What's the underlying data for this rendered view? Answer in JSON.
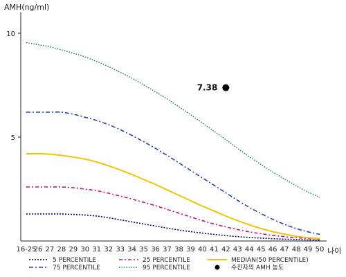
{
  "chart_data": {
    "type": "line",
    "title": "",
    "ylabel": "AMH(ng/ml)",
    "xlabel": "나이",
    "x": [
      "16-25",
      "26",
      "27",
      "28",
      "29",
      "30",
      "31",
      "32",
      "33",
      "34",
      "35",
      "36",
      "37",
      "38",
      "39",
      "40",
      "41",
      "42",
      "43",
      "44",
      "45",
      "46",
      "47",
      "48",
      "49",
      "50"
    ],
    "ylim": [
      0,
      11
    ],
    "yticks": [
      5,
      10
    ],
    "grid": false,
    "legend_position": "bottom",
    "series": [
      {
        "name": "5 PERCENTILE",
        "color": "#000080",
        "dash": "2,2",
        "values": [
          1.3,
          1.3,
          1.3,
          1.3,
          1.28,
          1.25,
          1.2,
          1.12,
          1.02,
          0.92,
          0.82,
          0.72,
          0.62,
          0.53,
          0.45,
          0.38,
          0.32,
          0.26,
          0.21,
          0.17,
          0.14,
          0.11,
          0.09,
          0.07,
          0.05,
          0.04
        ]
      },
      {
        "name": "25 PERCENTILE",
        "color": "#cc1177",
        "dash": "5,3,2,3",
        "values": [
          2.6,
          2.6,
          2.6,
          2.6,
          2.56,
          2.5,
          2.42,
          2.3,
          2.16,
          2.02,
          1.86,
          1.7,
          1.52,
          1.34,
          1.16,
          0.98,
          0.82,
          0.68,
          0.55,
          0.44,
          0.35,
          0.27,
          0.21,
          0.16,
          0.12,
          0.09
        ]
      },
      {
        "name": "MEDIAN(50 PERCENTILE)",
        "color": "#f5c400",
        "dash": "",
        "values": [
          4.2,
          4.2,
          4.18,
          4.12,
          4.04,
          3.94,
          3.8,
          3.62,
          3.42,
          3.2,
          2.96,
          2.72,
          2.46,
          2.2,
          1.94,
          1.68,
          1.44,
          1.2,
          0.98,
          0.78,
          0.6,
          0.45,
          0.33,
          0.23,
          0.16,
          0.11
        ]
      },
      {
        "name": "75 PERCENTILE",
        "color": "#2244cc",
        "dash": "6,3,2,3",
        "values": [
          6.2,
          6.2,
          6.2,
          6.2,
          6.1,
          5.96,
          5.8,
          5.6,
          5.36,
          5.08,
          4.78,
          4.46,
          4.12,
          3.76,
          3.4,
          3.04,
          2.68,
          2.32,
          1.96,
          1.62,
          1.32,
          1.04,
          0.8,
          0.6,
          0.44,
          0.32
        ]
      },
      {
        "name": "95 PERCENTILE",
        "color": "#2a8a55",
        "dash": "1.5,2",
        "values": [
          9.55,
          9.45,
          9.35,
          9.2,
          9.04,
          8.86,
          8.64,
          8.4,
          8.12,
          7.84,
          7.52,
          7.18,
          6.84,
          6.46,
          6.08,
          5.68,
          5.28,
          4.88,
          4.46,
          4.06,
          3.68,
          3.32,
          2.98,
          2.66,
          2.36,
          2.1
        ]
      }
    ],
    "points": [
      {
        "name": "수진자의 AMH 농도",
        "x": "42",
        "y": 7.38,
        "label": "7.38",
        "color": "#000000"
      }
    ]
  }
}
